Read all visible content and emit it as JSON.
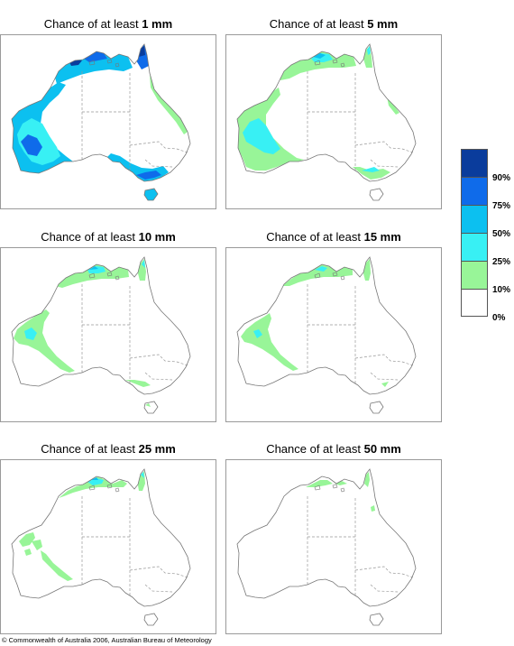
{
  "panels": [
    {
      "title_prefix": "Chance of at least",
      "amount": "1 mm",
      "level": 1
    },
    {
      "title_prefix": "Chance of at least",
      "amount": "5 mm",
      "level": 2
    },
    {
      "title_prefix": "Chance of at least",
      "amount": "10 mm",
      "level": 3
    },
    {
      "title_prefix": "Chance of at least",
      "amount": "15 mm",
      "level": 4
    },
    {
      "title_prefix": "Chance of at least",
      "amount": "25 mm",
      "level": 5
    },
    {
      "title_prefix": "Chance of at least",
      "amount": "50 mm",
      "level": 6
    }
  ],
  "legend": {
    "swatches": [
      {
        "color": "#0a3c9c",
        "range": ">90%"
      },
      {
        "color": "#0f6bea",
        "range": "75-90%"
      },
      {
        "color": "#0cc0f0",
        "range": "50-75%"
      },
      {
        "color": "#38f0f4",
        "range": "25-50%"
      },
      {
        "color": "#98f598",
        "range": "10-25%"
      },
      {
        "color": "#ffffff",
        "range": "0-10%"
      }
    ],
    "labels": [
      "90%",
      "75%",
      "50%",
      "25%",
      "10%",
      "0%"
    ]
  },
  "colors": {
    "coast": "#777777",
    "border": "#999999",
    "frame": "#9a9a9a"
  },
  "copyright": {
    "symbol": "©",
    "text": "Commonwealth of Australia 2006, Australian Bureau of Meteorology"
  }
}
